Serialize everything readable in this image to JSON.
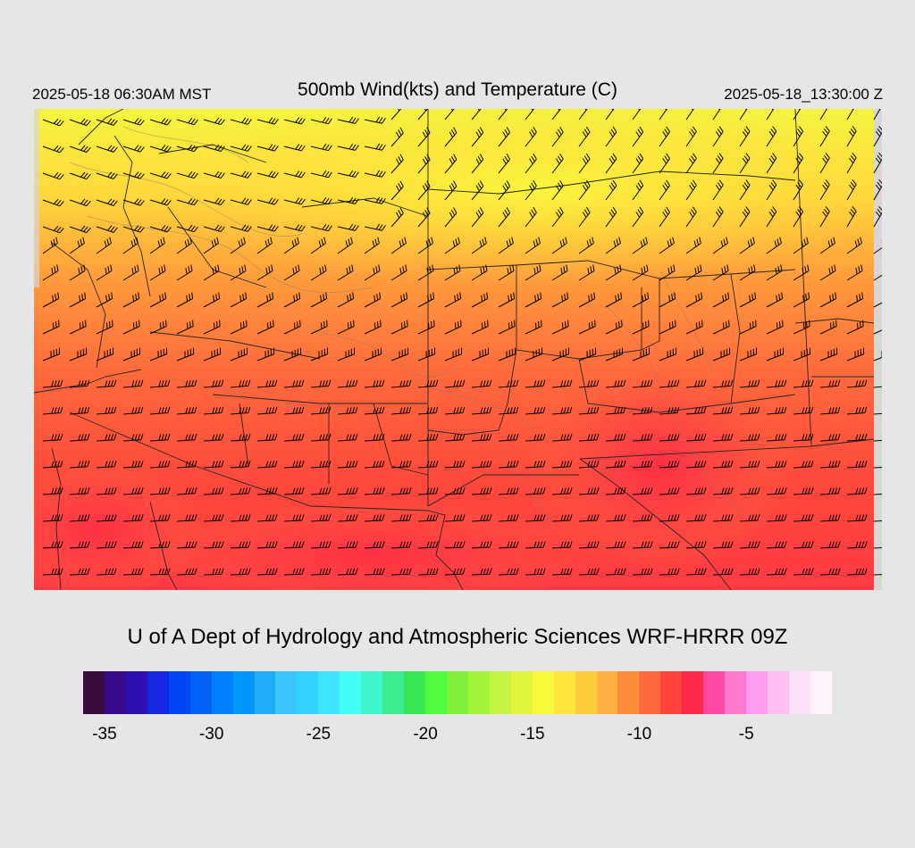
{
  "header": {
    "local_time": "2025-05-18 06:30AM MST",
    "title": "500mb Wind(kts) and Temperature (C)",
    "valid_time": "2025-05-18_13:30:00 Z"
  },
  "credit": "U of A Dept of Hydrology and Atmospheric Sciences WRF-HRRR 09Z",
  "colorbar": {
    "colors": [
      "#3a0a40",
      "#3a0a8a",
      "#3010b4",
      "#1428e0",
      "#0046f4",
      "#0060f8",
      "#0080ff",
      "#0096fa",
      "#1eacf5",
      "#3cc4ff",
      "#32d4ff",
      "#3ce4ff",
      "#40fff4",
      "#3cf5c8",
      "#3cec90",
      "#38e654",
      "#50fa40",
      "#7cf03a",
      "#a4f43c",
      "#c4f440",
      "#e0f43c",
      "#fafa3c",
      "#ffe43c",
      "#ffcc3c",
      "#ffb040",
      "#ff8c3c",
      "#ff6a3c",
      "#ff423c",
      "#ff2848",
      "#ff4aa0",
      "#ff78d0",
      "#ff9ef0",
      "#ffc0f0",
      "#ffe0fa",
      "#fff4fc"
    ],
    "labels": [
      "-35",
      "-30",
      "-25",
      "-20",
      "-15",
      "-10",
      "-5"
    ],
    "label_indices": [
      1,
      6,
      11,
      16,
      21,
      26,
      31
    ]
  },
  "map": {
    "region": "Arizona and New Mexico",
    "field": "500mb temperature (C) shaded, wind barbs (kts)"
  }
}
